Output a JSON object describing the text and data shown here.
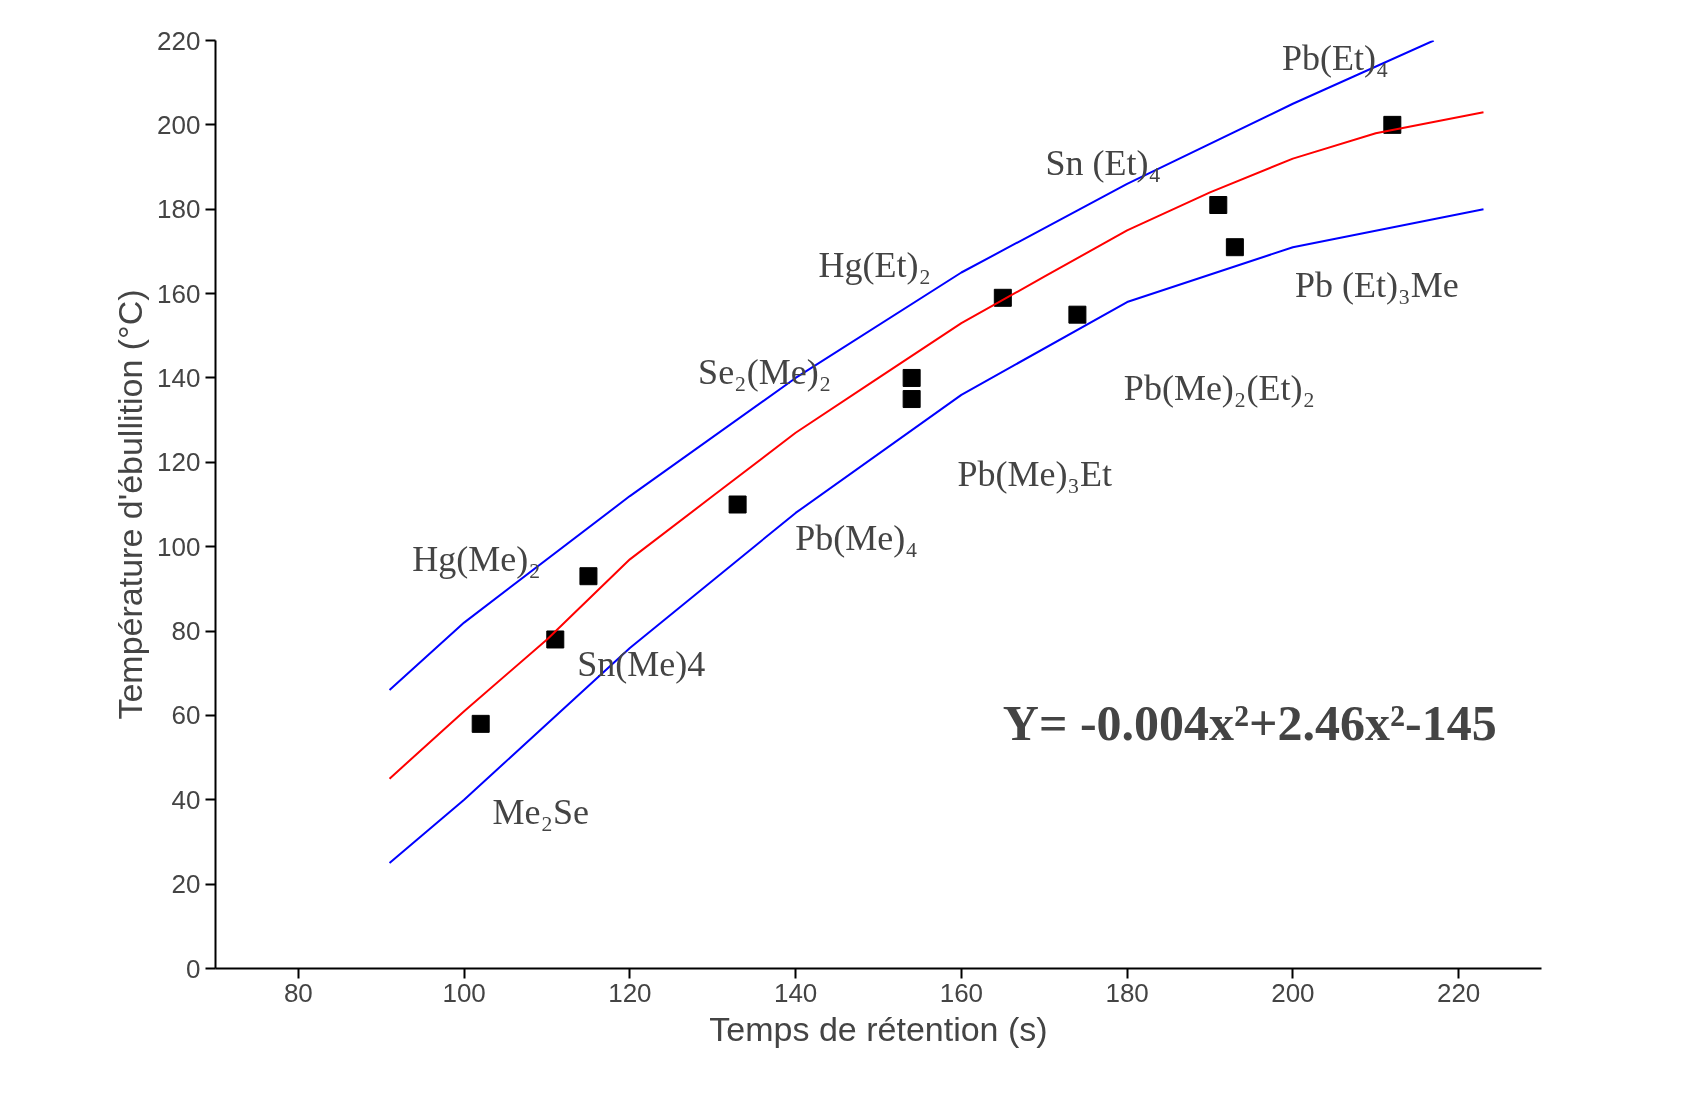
{
  "chart_data": {
    "type": "scatter",
    "xlabel": "Temps de rétention (s)",
    "ylabel": "Température d'ébullition (°C)",
    "xlim": [
      70,
      230
    ],
    "ylim": [
      0,
      220
    ],
    "xticks": [
      80,
      100,
      120,
      140,
      160,
      180,
      200,
      220
    ],
    "yticks": [
      0,
      20,
      40,
      60,
      80,
      100,
      120,
      140,
      160,
      180,
      200,
      220
    ],
    "grid": false,
    "series": [
      {
        "marker": "square",
        "color": "#000000",
        "x": [
          102,
          111,
          115,
          133,
          154,
          154,
          165,
          174,
          191,
          193,
          212
        ],
        "values": [
          58,
          78,
          93,
          110,
          140,
          135,
          159,
          155,
          181,
          171,
          200
        ]
      },
      {
        "type": "line",
        "color": "#ff0000",
        "x": [
          91,
          100,
          110,
          120,
          130,
          140,
          150,
          160,
          170,
          180,
          190,
          200,
          210,
          223
        ],
        "values": [
          45,
          61,
          78,
          97,
          112,
          127,
          140,
          153,
          164,
          175,
          184,
          192,
          198,
          203
        ]
      },
      {
        "type": "line",
        "color": "#0000ff",
        "x": [
          91,
          100,
          120,
          140,
          160,
          180,
          200,
          217
        ],
        "values": [
          66,
          82,
          112,
          140,
          165,
          186,
          205,
          220
        ]
      },
      {
        "type": "line",
        "color": "#0000ff",
        "x": [
          91,
          100,
          120,
          140,
          160,
          180,
          200,
          223
        ],
        "values": [
          25,
          40,
          76,
          108,
          136,
          158,
          171,
          180
        ]
      }
    ],
    "annotations": [
      {
        "text": "Pb(Et)₄",
        "x": 212,
        "y": 200
      },
      {
        "text": "Sn (Et)₄",
        "x": 191,
        "y": 181
      },
      {
        "text": "Hg(Et)₂",
        "x": 165,
        "y": 159
      },
      {
        "text": "Pb (Et)₃Me",
        "x": 193,
        "y": 171
      },
      {
        "text": "Se₂(Me)₂",
        "x": 154,
        "y": 140
      },
      {
        "text": "Pb(Me)₂(Et)₂",
        "x": 174,
        "y": 155
      },
      {
        "text": "Pb(Me)₃Et",
        "x": 154,
        "y": 135
      },
      {
        "text": "Pb(Me)₄",
        "x": 133,
        "y": 110
      },
      {
        "text": "Hg(Me)₂",
        "x": 115,
        "y": 93
      },
      {
        "text": "Sn(Me)4",
        "x": 111,
        "y": 78
      },
      {
        "text": "Me₂Se",
        "x": 102,
        "y": 58
      },
      "Y= -0.004x²+2.46x²-145"
    ]
  }
}
